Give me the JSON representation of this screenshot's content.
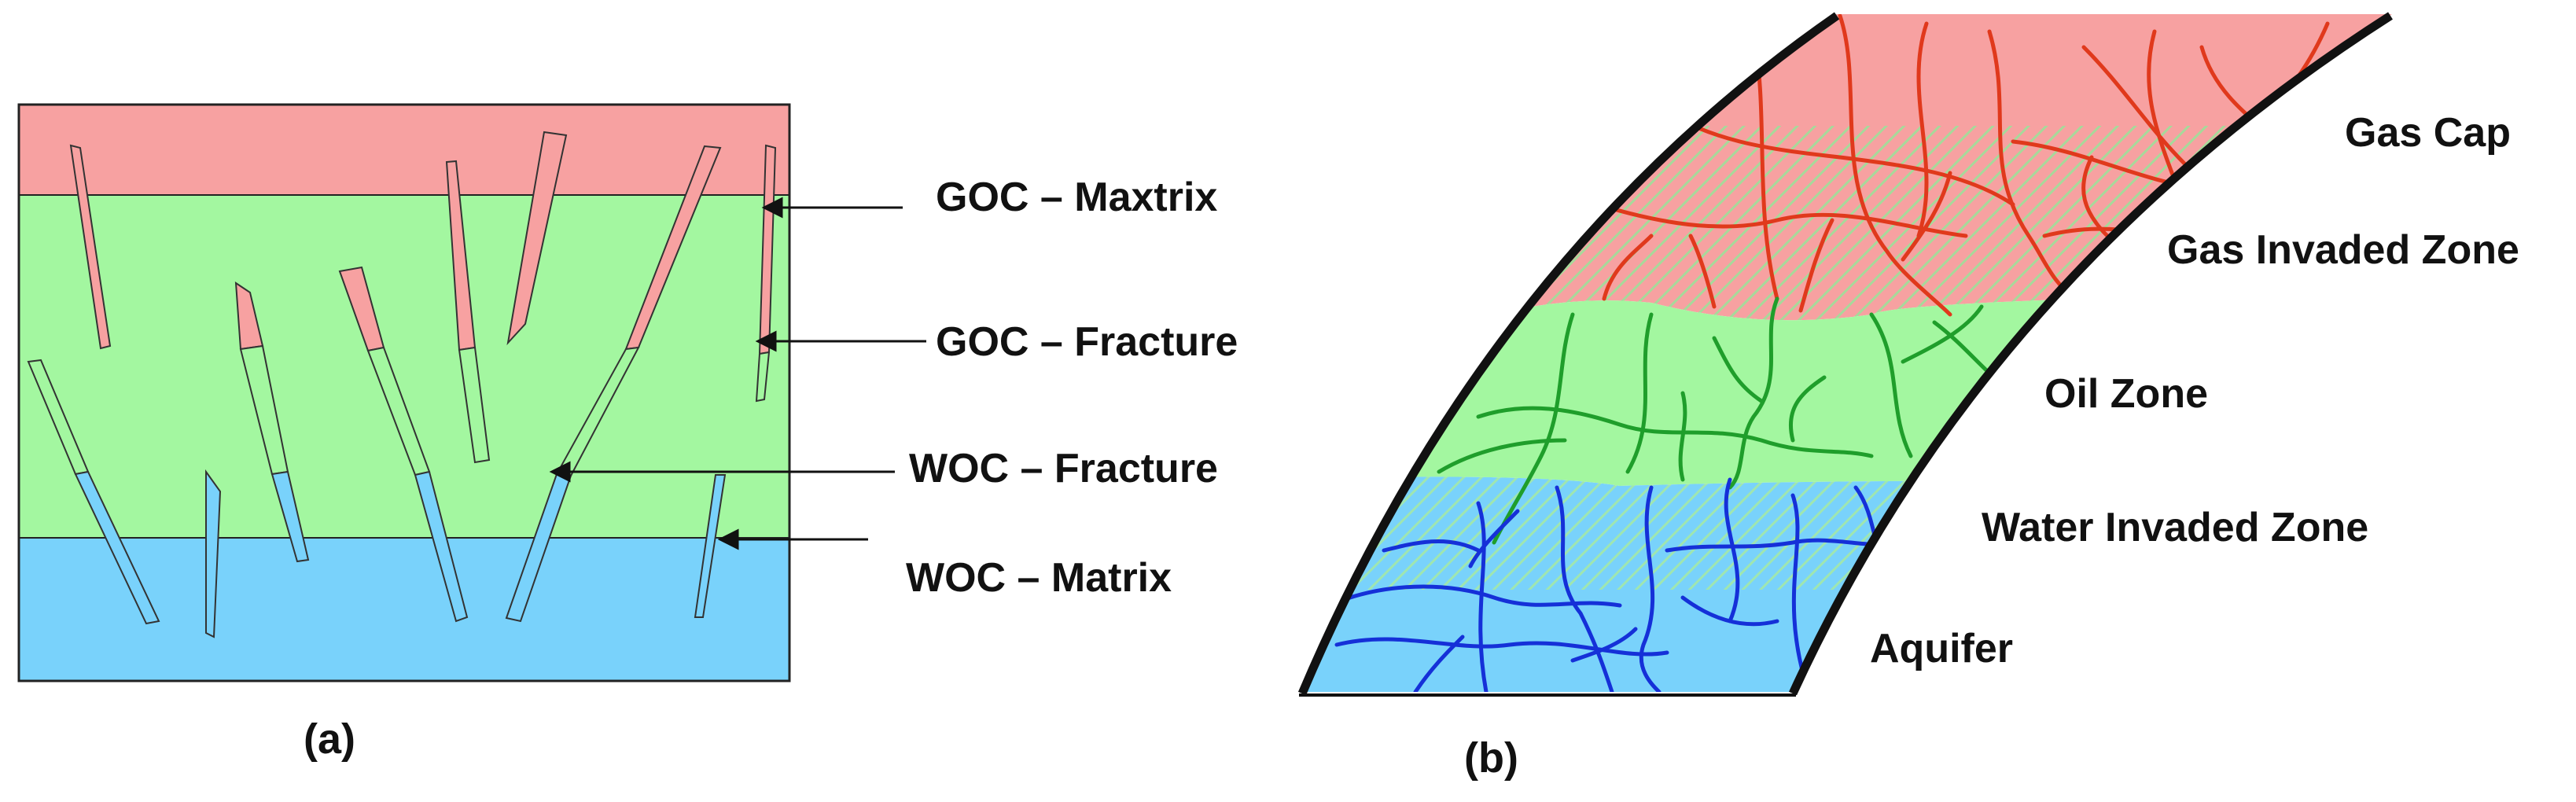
{
  "panel_a": {
    "caption": "(a)",
    "labels": {
      "goc_matrix": "GOC – Maxtrix",
      "goc_fracture": "GOC – Fracture",
      "woc_fracture": "WOC – Fracture",
      "woc_matrix": "WOC – Matrix"
    },
    "colors": {
      "gas": "#f7a1a1",
      "oil": "#a3f7a0",
      "water": "#79d2fb",
      "outline": "#222222"
    }
  },
  "panel_b": {
    "caption": "(b)",
    "zones": {
      "gas_cap": "Gas Cap",
      "gas_invaded": "Gas Invaded Zone",
      "oil_zone": "Oil Zone",
      "water_invaded": "Water Invaded Zone",
      "aquifer": "Aquifer"
    },
    "colors": {
      "gas": "#f7a1a1",
      "oil": "#a3f7a0",
      "water": "#79d2fb",
      "gas_fracture": "#e0391c",
      "oil_fracture": "#1f9e2b",
      "water_fracture": "#1530d8",
      "hatch_gas": "#a7d99a",
      "hatch_water": "#9fe6b0"
    }
  }
}
